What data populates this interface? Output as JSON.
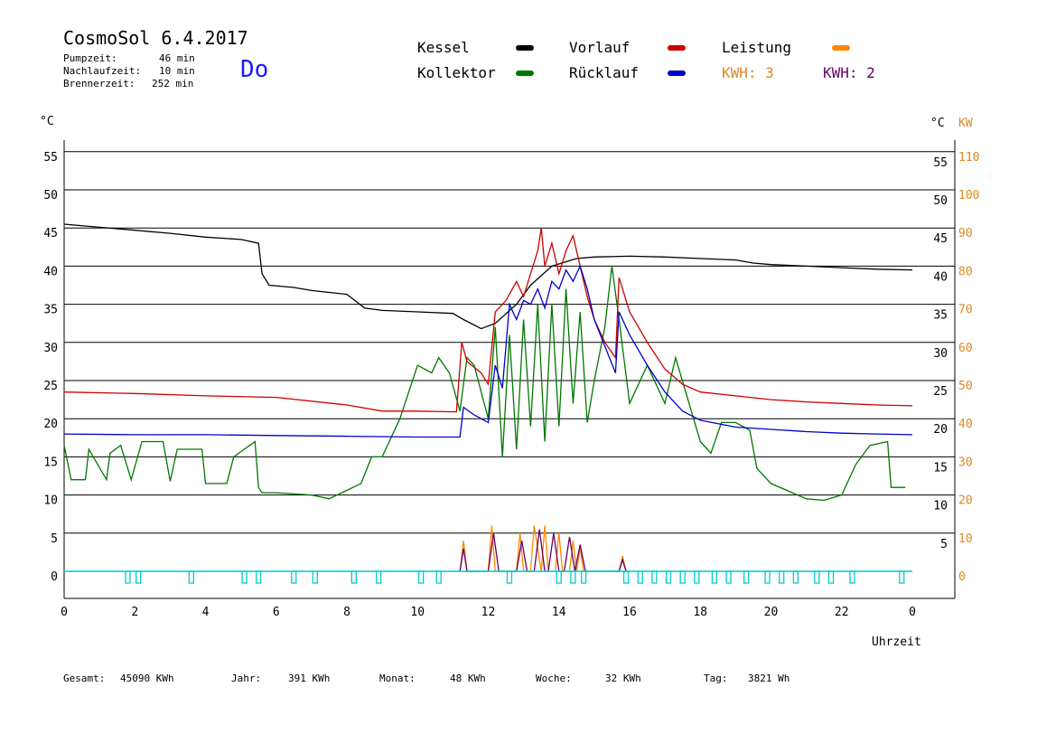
{
  "header": {
    "title": "CosmoSol 6.4.2017",
    "day": "Do",
    "pump_label": "Pumpzeit:",
    "pump_value": "46 min",
    "run_label": "Nachlaufzeit:",
    "run_value": "10 min",
    "burner_label": "Brennerzeit:",
    "burner_value": "252 min"
  },
  "legend": {
    "kessel": "Kessel",
    "kollektor": "Kollektor",
    "vorlauf": "Vorlauf",
    "ruecklauf": "Rücklauf",
    "leistung": "Leistung",
    "kwh1": "KWH: 3",
    "kwh2": "KWH: 2"
  },
  "footer": {
    "gesamt_label": "Gesamt:",
    "gesamt_value": "45090 KWh",
    "jahr_label": "Jahr:",
    "jahr_value": "391 KWh",
    "monat_label": "Monat:",
    "monat_value": "48 KWh",
    "woche_label": "Woche:",
    "woche_value": "32 KWh",
    "tag_label": "Tag:",
    "tag_value": "3821 Wh"
  },
  "colors": {
    "kessel": "#000000",
    "kollektor": "#007700",
    "vorlauf": "#cc0000",
    "ruecklauf": "#0000cc",
    "leistung": "#ff8800",
    "kwh2": "#660066",
    "pump": "#00cccc",
    "axis_right": "#dd8822"
  },
  "chart_data": {
    "type": "line",
    "xlabel": "Uhrzeit",
    "ylabel_left": "°C",
    "ylabel_right_1": "°C",
    "ylabel_right_2": "KW",
    "x_ticks": [
      "0",
      "2",
      "4",
      "6",
      "8",
      "10",
      "12",
      "14",
      "16",
      "18",
      "20",
      "22",
      "0"
    ],
    "y_ticks_left": [
      "0",
      "5",
      "10",
      "15",
      "20",
      "25",
      "30",
      "35",
      "40",
      "45",
      "50",
      "55"
    ],
    "y_ticks_right": [
      "5",
      "10",
      "15",
      "20",
      "25",
      "30",
      "35",
      "40",
      "45",
      "50",
      "55"
    ],
    "y_ticks_kw": [
      "0",
      "10",
      "20",
      "30",
      "40",
      "50",
      "60",
      "70",
      "80",
      "90",
      "100",
      "110"
    ],
    "xlim": [
      0,
      24
    ],
    "ylim": [
      0,
      55
    ],
    "grid": true,
    "series": [
      {
        "name": "Kessel",
        "x": [
          0,
          1,
          2,
          3,
          4,
          5,
          5.5,
          5.6,
          5.8,
          6.5,
          7,
          8,
          8.5,
          9,
          10,
          11,
          11.3,
          11.8,
          12.2,
          12.8,
          13.2,
          13.8,
          14.5,
          15,
          16,
          17,
          18,
          19,
          19.5,
          20,
          21,
          22,
          23,
          24
        ],
        "y": [
          45.5,
          45.1,
          44.7,
          44.3,
          43.8,
          43.5,
          43.0,
          39.0,
          37.5,
          37.2,
          36.8,
          36.3,
          34.5,
          34.2,
          34.0,
          33.8,
          33.0,
          31.8,
          32.5,
          35.0,
          37.5,
          40.0,
          41.0,
          41.2,
          41.3,
          41.2,
          41.0,
          40.8,
          40.4,
          40.2,
          40.0,
          39.8,
          39.6,
          39.5
        ]
      },
      {
        "name": "Kollektor",
        "x": [
          0,
          0.2,
          0.6,
          0.7,
          1.2,
          1.3,
          1.6,
          1.9,
          2.2,
          2.8,
          3.0,
          3.2,
          3.9,
          4.0,
          4.6,
          4.8,
          5.4,
          5.5,
          5.6,
          6.0,
          7,
          7.5,
          8.4,
          8.7,
          9,
          9.5,
          10,
          10.4,
          10.6,
          10.9,
          11.2,
          11.4,
          11.6,
          12.0,
          12.2,
          12.4,
          12.6,
          12.8,
          13.0,
          13.2,
          13.4,
          13.6,
          13.8,
          14.0,
          14.2,
          14.4,
          14.6,
          14.8,
          15.0,
          15.3,
          15.5,
          15.7,
          16.0,
          16.5,
          17.0,
          17.3,
          18.0,
          18.3,
          18.6,
          19.0,
          19.4,
          19.6,
          20.0,
          20.5,
          21.0,
          21.5,
          22.0,
          22.4,
          22.8,
          23.3,
          23.4,
          23.8
        ],
        "y": [
          16.5,
          12.0,
          12.0,
          16.0,
          12.0,
          15.5,
          16.5,
          12.0,
          17.0,
          17.0,
          11.8,
          16.0,
          16.0,
          11.5,
          11.5,
          15.0,
          17.0,
          11.0,
          10.3,
          10.3,
          10.0,
          9.5,
          11.5,
          15.0,
          15.0,
          20.0,
          27.0,
          26.0,
          28.0,
          26.0,
          21.0,
          28.0,
          27.0,
          20.0,
          32.0,
          15.0,
          31.0,
          16.0,
          33.0,
          19.0,
          35.0,
          17.0,
          35.0,
          19.0,
          37.0,
          22.0,
          34.0,
          19.5,
          25.0,
          32.0,
          40.0,
          33.0,
          22.0,
          27.0,
          22.0,
          28.0,
          17.0,
          15.5,
          19.5,
          19.5,
          18.5,
          13.5,
          11.5,
          10.5,
          9.5,
          9.3,
          10.0,
          14.0,
          16.5,
          17.0,
          11.0,
          11.0
        ]
      },
      {
        "name": "Vorlauf",
        "x": [
          0,
          2,
          4,
          6,
          8,
          9,
          10,
          11.1,
          11.25,
          11.4,
          11.8,
          12.0,
          12.2,
          12.5,
          12.8,
          13.0,
          13.2,
          13.4,
          13.5,
          13.6,
          13.8,
          14.0,
          14.2,
          14.4,
          14.6,
          14.8,
          15.0,
          15.3,
          15.6,
          15.7,
          16.0,
          16.5,
          17.0,
          17.5,
          18,
          19,
          20,
          21,
          22,
          23,
          24
        ],
        "y": [
          23.5,
          23.3,
          23.0,
          22.8,
          21.8,
          21.0,
          21.0,
          20.9,
          30.0,
          27.5,
          26.0,
          24.5,
          34.0,
          35.5,
          38.0,
          36.0,
          39.0,
          42.0,
          45.0,
          40.0,
          43.0,
          39.0,
          42.0,
          44.0,
          40.0,
          36.0,
          33.0,
          30.0,
          28.0,
          38.5,
          34.0,
          30.0,
          26.5,
          24.5,
          23.5,
          23.0,
          22.5,
          22.2,
          22.0,
          21.8,
          21.7
        ]
      },
      {
        "name": "Rücklauf",
        "x": [
          0,
          2,
          4,
          6,
          8,
          10,
          11.2,
          11.3,
          11.6,
          12.0,
          12.2,
          12.4,
          12.6,
          12.8,
          13.0,
          13.2,
          13.4,
          13.6,
          13.8,
          14.0,
          14.2,
          14.4,
          14.6,
          14.8,
          15.0,
          15.3,
          15.6,
          15.7,
          16.0,
          16.5,
          17,
          17.5,
          18,
          19,
          20,
          21,
          22,
          23,
          24
        ],
        "y": [
          18.0,
          17.9,
          17.9,
          17.8,
          17.7,
          17.6,
          17.6,
          21.5,
          20.5,
          19.5,
          27.0,
          24.0,
          35.0,
          33.0,
          35.5,
          35.0,
          37.0,
          34.5,
          38.0,
          37.0,
          39.5,
          38.0,
          40.0,
          37.0,
          33.0,
          29.5,
          26.0,
          34.0,
          31.0,
          27.0,
          23.5,
          21.0,
          19.8,
          18.9,
          18.6,
          18.3,
          18.1,
          18.0,
          17.9
        ]
      },
      {
        "name": "Leistung",
        "x": [
          11.2,
          11.3,
          11.4,
          12.0,
          12.1,
          12.2,
          12.8,
          12.9,
          13.0,
          13.2,
          13.3,
          13.5,
          13.6,
          13.7,
          13.9,
          14.0,
          14.1,
          14.3,
          14.4,
          14.5,
          14.6,
          14.7,
          15.7,
          15.8,
          15.9
        ],
        "y": [
          0,
          8,
          0,
          0,
          12,
          0,
          0,
          10,
          0,
          0,
          12,
          0,
          12,
          0,
          0,
          10,
          0,
          0,
          8,
          0,
          6,
          0,
          0,
          4,
          0
        ]
      },
      {
        "name": "KWH 2",
        "x": [
          11.2,
          11.3,
          11.4,
          12.0,
          12.15,
          12.3,
          12.8,
          12.95,
          13.1,
          13.3,
          13.45,
          13.6,
          13.7,
          13.85,
          14.0,
          14.15,
          14.3,
          14.45,
          14.6,
          14.75,
          15.7,
          15.8,
          15.9
        ],
        "y": [
          0,
          6,
          0,
          0,
          10,
          0,
          0,
          8,
          0,
          0,
          11,
          0,
          0,
          10,
          0,
          0,
          9,
          0,
          7,
          0,
          0,
          3,
          0
        ]
      }
    ],
    "pump_on_hours": [
      1.8,
      2.1,
      3.6,
      5.1,
      5.5,
      6.5,
      7.1,
      8.2,
      8.9,
      10.1,
      10.6,
      12.6,
      14.0,
      14.4,
      14.7,
      15.9,
      16.3,
      16.7,
      17.1,
      17.5,
      17.9,
      18.4,
      18.8,
      19.3,
      19.9,
      20.3,
      20.7,
      21.3,
      21.7,
      22.3,
      23.7
    ]
  }
}
